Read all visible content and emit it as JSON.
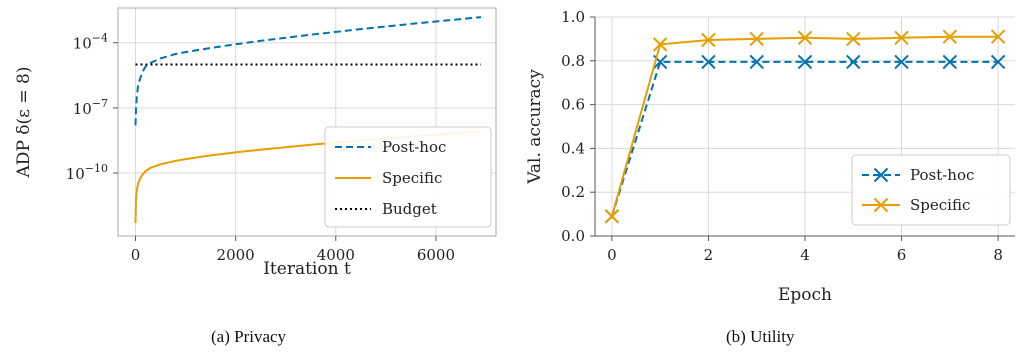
{
  "chart_data": [
    {
      "type": "line",
      "caption": "(a) Privacy",
      "xlabel": "Iteration t",
      "ylabel": "ADP δ(ε = 8)",
      "xlim": [
        -350,
        7200
      ],
      "ylim_log10": [
        -12.9,
        -2.4
      ],
      "yscale": "log",
      "x_ticks": [
        0,
        2000,
        4000,
        6000
      ],
      "x_tick_labels": [
        "0",
        "2000",
        "4000",
        "6000"
      ],
      "y_ticks": [
        {
          "exp": -10,
          "base": "10",
          "sup": "−10"
        },
        {
          "exp": -7,
          "base": "10",
          "sup": "−7"
        },
        {
          "exp": -4,
          "base": "10",
          "sup": "−4"
        }
      ],
      "grid": true,
      "legend_position": "bottom-right",
      "series": [
        {
          "name": "Post-hoc",
          "color": "#0072b2",
          "style": "dashed",
          "x": [
            0,
            10,
            25,
            50,
            100,
            150,
            200,
            300,
            500,
            800,
            1000,
            1500,
            2000,
            2500,
            3000,
            3500,
            4000,
            4500,
            5000,
            5500,
            6000,
            6500,
            6900
          ],
          "log10_y": [
            -7.8,
            -7.0,
            -6.5,
            -6.0,
            -5.6,
            -5.3,
            -5.1,
            -4.93,
            -4.72,
            -4.52,
            -4.43,
            -4.24,
            -4.07,
            -3.91,
            -3.77,
            -3.63,
            -3.5,
            -3.37,
            -3.25,
            -3.13,
            -3.02,
            -2.91,
            -2.82
          ]
        },
        {
          "name": "Specific",
          "color": "#e69f00",
          "style": "solid",
          "x": [
            0,
            10,
            25,
            50,
            100,
            150,
            200,
            300,
            500,
            800,
            1000,
            1500,
            2000,
            2500,
            3000,
            3500,
            4000,
            4500,
            5000,
            5500,
            6000,
            6500,
            6900
          ],
          "log10_y": [
            -12.3,
            -11.2,
            -10.8,
            -10.5,
            -10.22,
            -10.05,
            -9.92,
            -9.76,
            -9.6,
            -9.44,
            -9.36,
            -9.19,
            -9.05,
            -8.92,
            -8.81,
            -8.7,
            -8.6,
            -8.5,
            -8.41,
            -8.32,
            -8.23,
            -8.15,
            -8.08
          ]
        },
        {
          "name": "Budget",
          "color": "#000000",
          "style": "dotted",
          "x": [
            0,
            6900
          ],
          "log10_y": [
            -5.0,
            -5.0
          ]
        }
      ]
    },
    {
      "type": "line",
      "caption": "(b) Utility",
      "xlabel": "Epoch",
      "ylabel": "Val. accuracy",
      "xlim": [
        -0.35,
        8.35
      ],
      "ylim": [
        0,
        1.0
      ],
      "x_ticks": [
        0,
        2,
        4,
        6,
        8
      ],
      "y_ticks": [
        0.0,
        0.2,
        0.4,
        0.6,
        0.8,
        1.0
      ],
      "y_tick_labels": [
        "0.0",
        "0.2",
        "0.4",
        "0.6",
        "0.8",
        "1.0"
      ],
      "grid": true,
      "legend_position": "bottom-right",
      "series": [
        {
          "name": "Post-hoc",
          "color": "#0072b2",
          "style": "dashed",
          "marker": "x",
          "x": [
            0,
            1,
            2,
            3,
            4,
            5,
            6,
            7,
            8
          ],
          "y": [
            0.09,
            0.795,
            0.795,
            0.795,
            0.795,
            0.795,
            0.795,
            0.795,
            0.795
          ]
        },
        {
          "name": "Specific",
          "color": "#e69f00",
          "style": "solid",
          "marker": "x",
          "x": [
            0,
            1,
            2,
            3,
            4,
            5,
            6,
            7,
            8
          ],
          "y": [
            0.09,
            0.875,
            0.895,
            0.9,
            0.905,
            0.9,
            0.905,
            0.91,
            0.91
          ]
        }
      ]
    }
  ]
}
